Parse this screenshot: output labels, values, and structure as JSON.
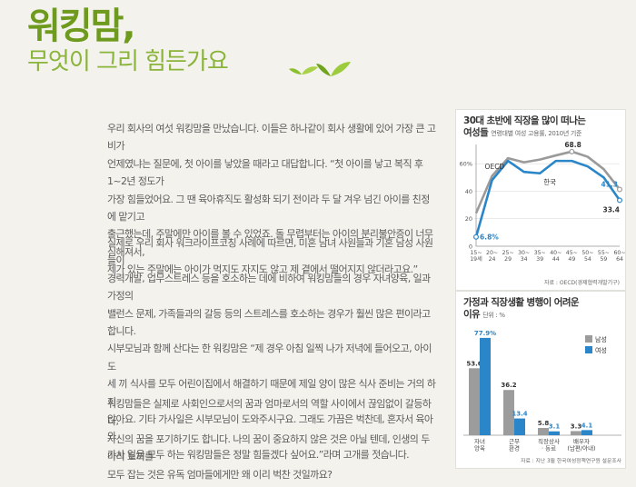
{
  "title": {
    "line1": "워킹맘,",
    "line2": "무엇이 그리 힘든가요"
  },
  "icons": {
    "sprout": "sprout-icon"
  },
  "article": {
    "p1": "우리 회사의 여섯 워킹맘을 만났습니다. 이들은 하나같이 회사 생활에 있어 가장 큰 고비가\n언제였냐는 질문에, 첫 아이를 낳았을 때라고 대답합니다. “첫 아이를 낳고 복직 후 1~2년 정도가\n가장 힘들었어요. 그 땐 육아휴직도 활성화 되기 전이라 두 달 겨우 넘긴 아이를 친정에 맡기고\n출근했는데, 주말에만 아이를 볼 수 있었죠. 돌 무렵부터는 아이의 분리불안증이 너무 심해져서,\n제가 있는 주말에는 아이가 먹지도 자지도 않고  제 곁에서 떨어지지 않더라고요.”",
    "p2": "실제로 우리 회사 워크라이프코칭 사례에 따르면, 미혼 남녀 사원들과 기혼 남성 사원들이\n경력개발, 업무스트레스 등을 호소하는 데에 비하여 워킹맘들의 경우 자녀양육, 일과 가정의\n밸런스 문제, 가족들과의 갈등 등의 스트레스를 호소하는 경우가 훨씬 많은 편이라고 합니다.\n시부모님과 함께 산다는 한 워킹맘은 “제 경우 아침 일찍 나가 저녁에 들어오고, 아이도\n세 끼 식사를 모두 어린이집에서 해결하기 때문에 제일 양이 많은 식사 준비는 거의 하지\n않아요. 기타 가사일은 시부모님이 도와주시구요. 그래도 가끔은 벅찬데, 혼자서 육아와\n가사 일을 모두 하는 워킹맘들은 정말 힘들겠다 싶어요.”라며 고개를 젓습니다.",
    "p3": "워킹맘들은 실제로 사회인으로서의 꿈과 엄마로서의 역할 사이에서 끊임없이 갈등하다,\n자신의 꿈을 포기하기도 합니다. 나의 꿈이 중요하지 않은 것은 아닐 텐데, 인생의 두 마리 토끼를\n모두 잡는 것은 유독 엄마들에게만 왜 이리 벅찬 것일까요?"
  },
  "chart_data": [
    {
      "type": "line",
      "title": "30대 초반에 직장을 많이 떠나는\n여성들",
      "subtitle": "연령대별 여성 고용률, 2010년 기준",
      "source": "자료 : OECD(경제협력개발기구)",
      "y_ticks": [
        "0",
        "20",
        "40",
        "60%"
      ],
      "ylim": [
        0,
        70
      ],
      "categories": [
        "15~\n19세",
        "20~\n24",
        "25~\n29",
        "30~\n34",
        "35~\n39",
        "40~\n44",
        "45~\n49",
        "50~\n54",
        "55~\n59",
        "60~\n64"
      ],
      "series": [
        {
          "name": "OECD",
          "values": [
            24,
            51,
            64,
            61,
            63,
            66,
            68.8,
            65,
            56,
            41.3
          ],
          "color": "#9a9a9a"
        },
        {
          "name": "한국",
          "values": [
            6.8,
            48,
            62,
            54,
            53,
            62,
            62,
            58,
            50,
            33.4
          ],
          "color": "#2a86c8"
        }
      ],
      "labels": {
        "oecd_end": "41.3",
        "oecd_peak": "68.8",
        "korea_end": "33.4",
        "korea_start": "6.8%"
      }
    },
    {
      "type": "bar",
      "title": "가정과 직장생활 병행이 어려운\n이유",
      "unit": "단위 : %",
      "source": "자료 : 지난 3월 한국여성정책연구원 설문조사",
      "categories": [
        "자녀\n양육",
        "근무\n환경",
        "직장상사\n· 동료",
        "배우자\n(남편/아내)"
      ],
      "series": [
        {
          "name": "남성",
          "values": [
            53.6,
            36.2,
            5.8,
            3.3
          ],
          "color": "#9c9c9c"
        },
        {
          "name": "여성",
          "values": [
            77.9,
            13.4,
            3.1,
            4.1
          ],
          "color": "#2a86c8"
        }
      ],
      "value_labels": {
        "male": [
          "53.6",
          "36.2",
          "5.8",
          "3.3"
        ],
        "female": [
          "77.9%",
          "13.4",
          "3.1",
          "4.1"
        ]
      }
    }
  ]
}
